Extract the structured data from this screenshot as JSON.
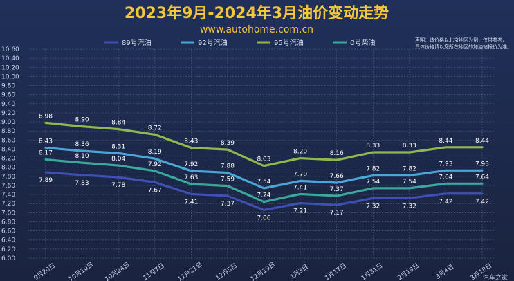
{
  "chart_data": {
    "type": "line",
    "title": "2023年9月-2024年3月油价变动走势",
    "subtitle": "www.autohome.com.cn",
    "note_lines": [
      "声明：该价格以北京地区为例，仅供参考，",
      "具体价格请以您所在地区的加油站报价为准。"
    ],
    "categories": [
      "9月20日",
      "10月10日",
      "10月24日",
      "11月7日",
      "11月21日",
      "12月5日",
      "12月19日",
      "1月3日",
      "1月17日",
      "1月31日",
      "2月19日",
      "3月4日",
      "3月18日"
    ],
    "ylim": [
      6.0,
      10.6
    ],
    "yticks": [
      "6.00",
      "6.20",
      "6.40",
      "6.60",
      "6.80",
      "7.00",
      "7.20",
      "7.40",
      "7.60",
      "7.80",
      "8.00",
      "8.20",
      "8.40",
      "8.60",
      "8.80",
      "9.00",
      "9.20",
      "9.40",
      "9.60",
      "9.80",
      "10.00",
      "10.20",
      "10.40",
      "10.60"
    ],
    "grid": true,
    "legend_position": "top-center",
    "series": [
      {
        "name": "89号汽油",
        "color": "#3f4fb3",
        "values": [
          7.89,
          7.83,
          7.78,
          7.67,
          7.41,
          7.37,
          7.06,
          7.21,
          7.17,
          7.32,
          7.32,
          7.42,
          7.42
        ]
      },
      {
        "name": "92号汽油",
        "color": "#4aa6d6",
        "values": [
          8.43,
          8.36,
          8.31,
          8.19,
          7.92,
          7.88,
          7.54,
          7.7,
          7.66,
          7.82,
          7.82,
          7.93,
          7.93
        ]
      },
      {
        "name": "95号汽油",
        "color": "#8fb84e",
        "values": [
          8.98,
          8.9,
          8.84,
          8.72,
          8.43,
          8.39,
          8.03,
          8.2,
          8.16,
          8.33,
          8.33,
          8.44,
          8.44
        ]
      },
      {
        "name": "0号柴油",
        "color": "#3aa89a",
        "values": [
          8.17,
          8.1,
          8.04,
          7.92,
          7.63,
          7.59,
          7.24,
          7.41,
          7.37,
          7.54,
          7.54,
          7.64,
          7.64
        ]
      }
    ],
    "watermark": "汽车之家"
  }
}
